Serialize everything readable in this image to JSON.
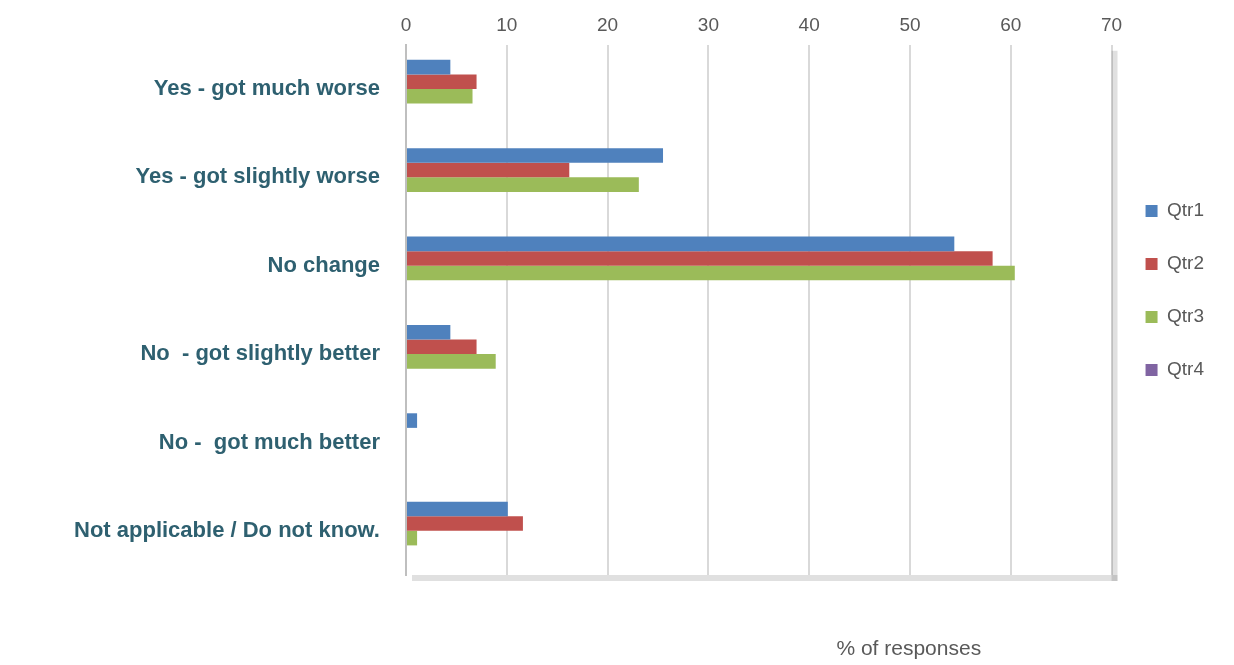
{
  "chart_data": {
    "type": "bar",
    "orientation": "horizontal",
    "xlabel": "% of responses",
    "categories": [
      "Yes - got much worse",
      "Yes - got slightly worse",
      "No change",
      "No  - got slightly better",
      "No -  got much better",
      "Not applicable / Do not know."
    ],
    "series": [
      {
        "name": "Qtr1",
        "color": "#4f81bd",
        "values": [
          4.4,
          25.5,
          54.4,
          4.4,
          1.1,
          10.1
        ]
      },
      {
        "name": "Qtr2",
        "color": "#c0504d",
        "values": [
          7.0,
          16.2,
          58.2,
          7.0,
          null,
          11.6
        ]
      },
      {
        "name": "Qtr3",
        "color": "#9bbb59",
        "values": [
          6.6,
          23.1,
          60.4,
          8.9,
          null,
          1.1
        ]
      },
      {
        "name": "Qtr4",
        "color": "#8064a2",
        "values": [
          null,
          null,
          null,
          null,
          null,
          null
        ]
      }
    ],
    "xlim": [
      0,
      70
    ],
    "xticks": [
      0,
      10,
      20,
      30,
      40,
      50,
      60,
      70
    ],
    "grid": "x",
    "legend": "right"
  }
}
